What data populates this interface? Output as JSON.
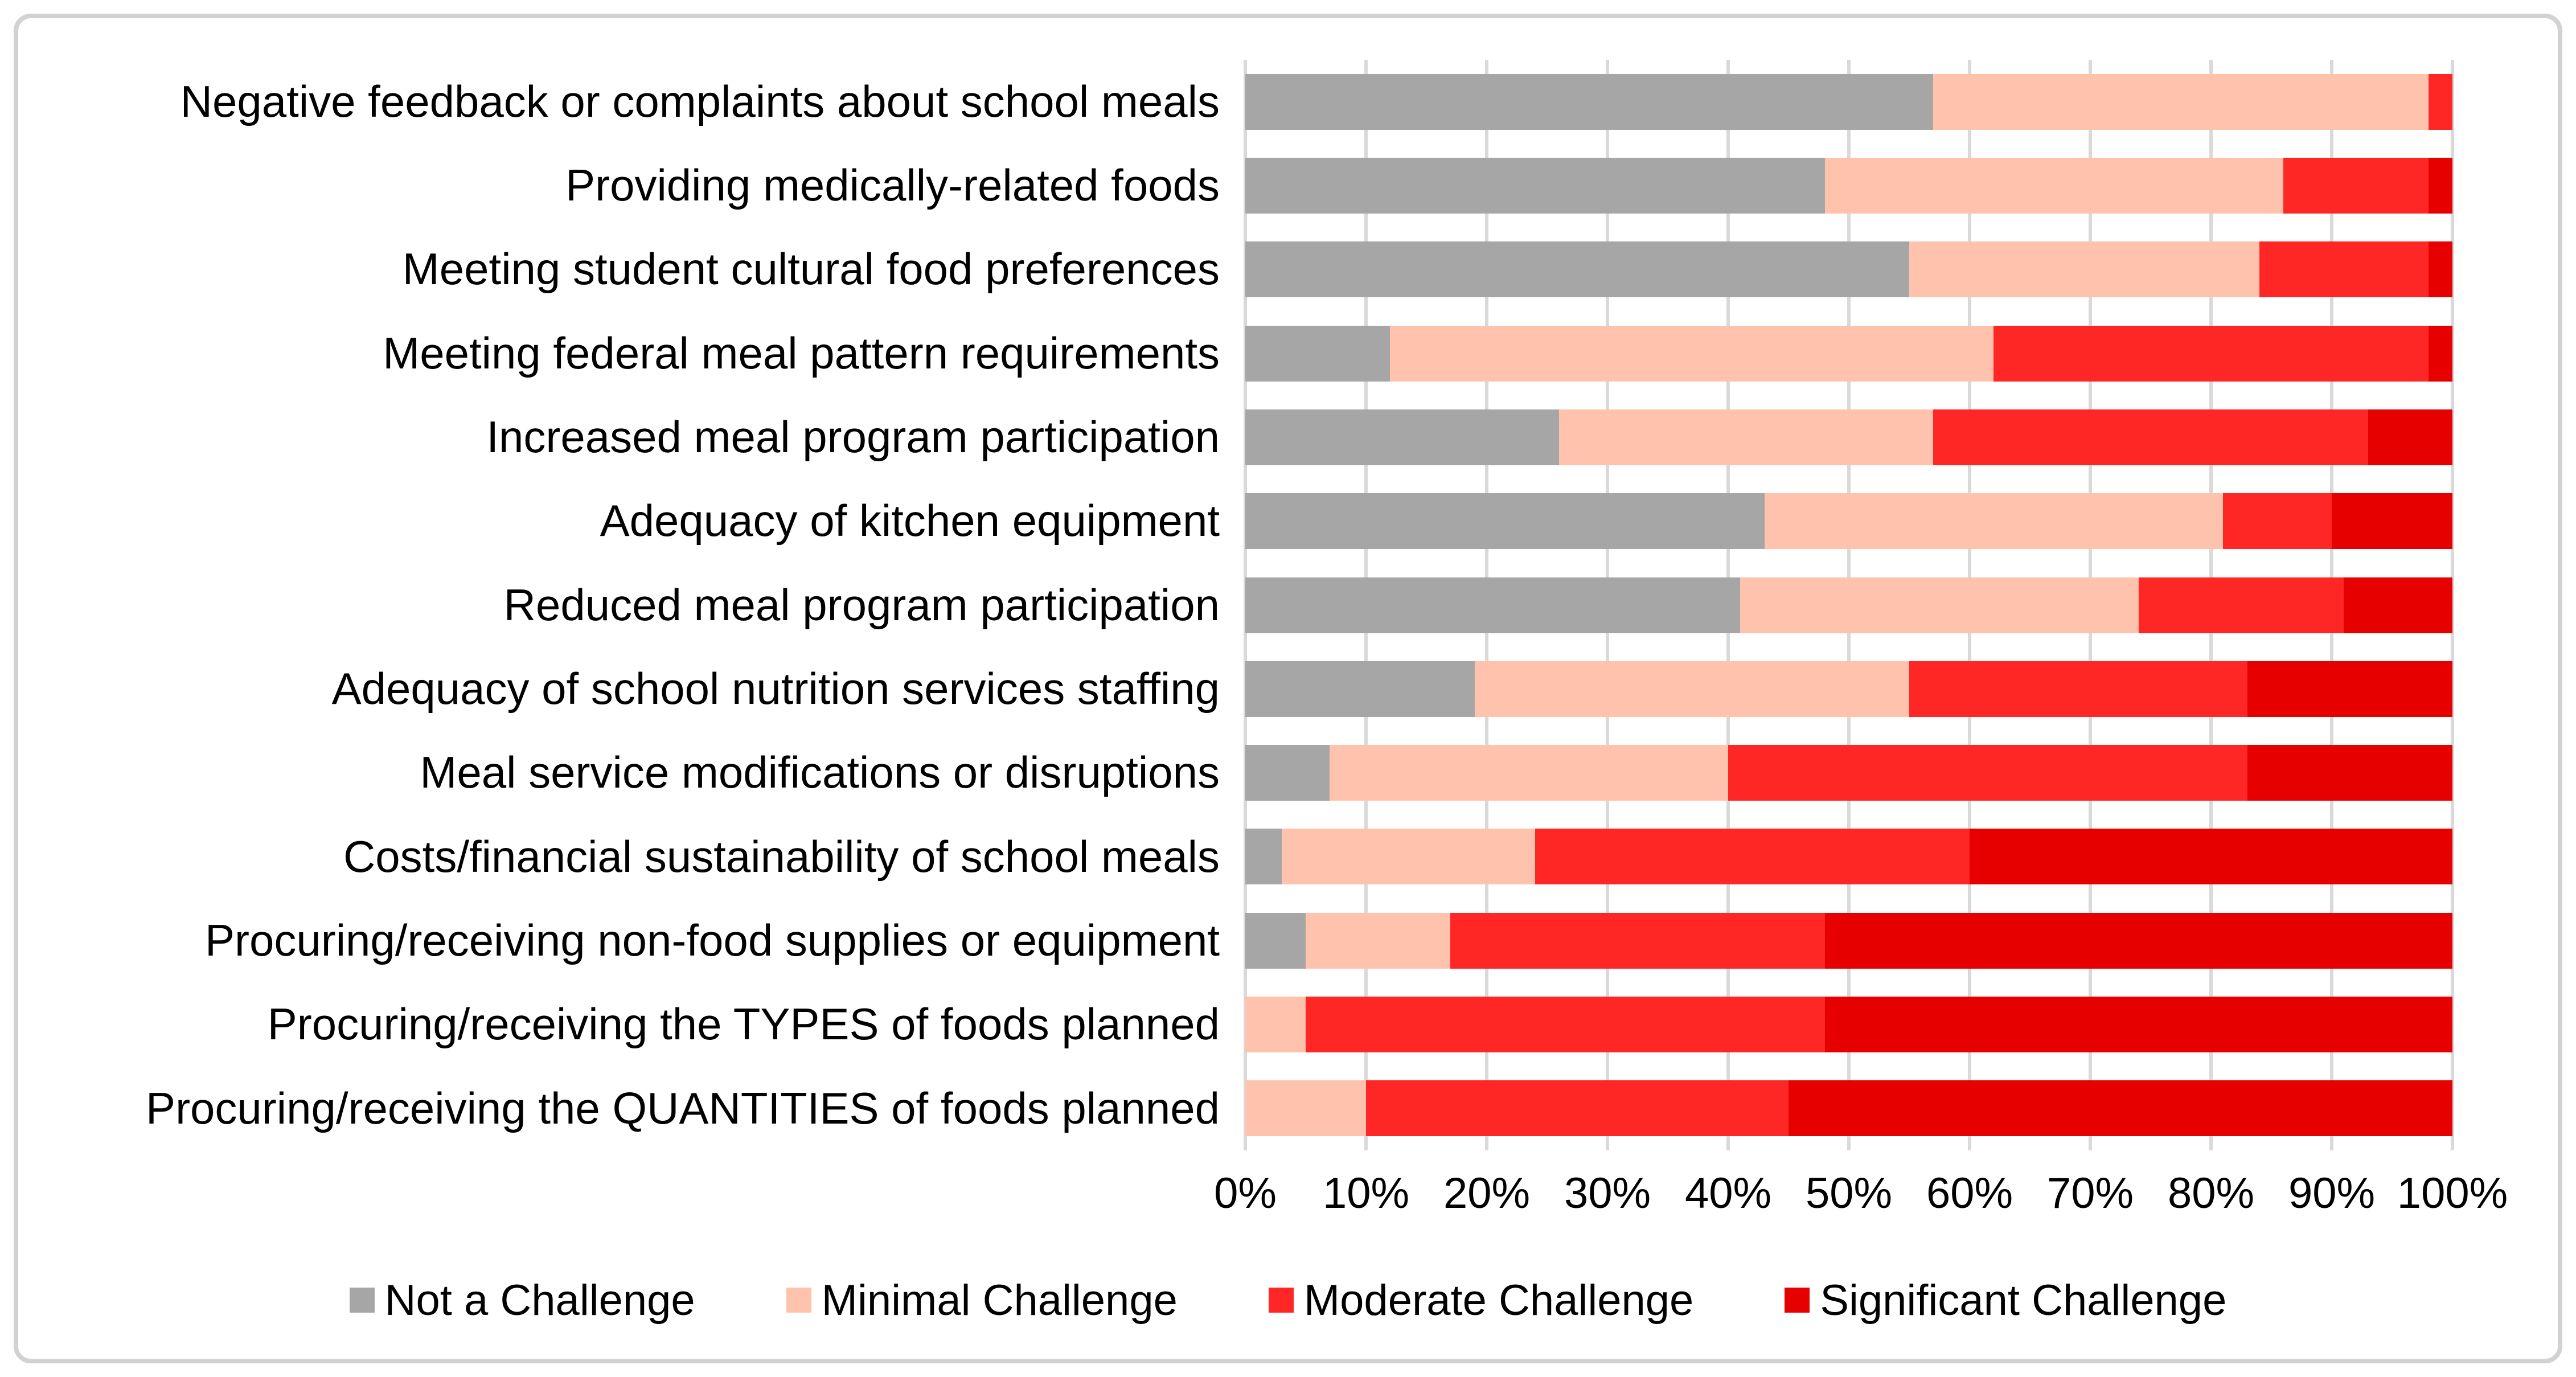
{
  "chart_data": {
    "type": "bar",
    "orientation": "horizontal-stacked",
    "title": "",
    "xlabel": "",
    "ylabel": "",
    "grid": true,
    "legend_position": "bottom",
    "x_axis": {
      "min": 0,
      "max": 100,
      "tick_labels": [
        "0%",
        "10%",
        "20%",
        "30%",
        "40%",
        "50%",
        "60%",
        "70%",
        "80%",
        "90%",
        "100%"
      ]
    },
    "categories": [
      "Negative feedback or complaints about school meals",
      "Providing medically-related foods",
      "Meeting student cultural food preferences",
      "Meeting federal meal pattern requirements",
      "Increased meal program participation",
      "Adequacy of kitchen equipment",
      "Reduced meal program participation",
      "Adequacy of school nutrition services staffing",
      "Meal service modifications or disruptions",
      "Costs/financial sustainability of school meals",
      "Procuring/receiving non-food supplies or equipment",
      "Procuring/receiving the TYPES of foods planned",
      "Procuring/receiving the QUANTITIES of foods planned"
    ],
    "series": [
      {
        "name": "Not a Challenge",
        "color": "#a6a6a6",
        "values": [
          57,
          48,
          55,
          12,
          26,
          43,
          41,
          19,
          7,
          3,
          5,
          0,
          0
        ]
      },
      {
        "name": "Minimal Challenge",
        "color": "#ffc3ad",
        "values": [
          41,
          38,
          29,
          50,
          31,
          38,
          33,
          36,
          33,
          21,
          12,
          5,
          10
        ]
      },
      {
        "name": "Moderate Challenge",
        "color": "#ff2626",
        "values": [
          2,
          12,
          14,
          36,
          36,
          9,
          17,
          28,
          43,
          36,
          31,
          43,
          35
        ]
      },
      {
        "name": "Significant Challenge",
        "color": "#e60000",
        "values": [
          0,
          2,
          2,
          2,
          7,
          10,
          9,
          17,
          17,
          40,
          52,
          52,
          55
        ]
      }
    ],
    "colors": {
      "gridline": "#d9d9d9",
      "frame_border": "#d2d2d2",
      "text": "#000000",
      "background": "#ffffff"
    }
  }
}
